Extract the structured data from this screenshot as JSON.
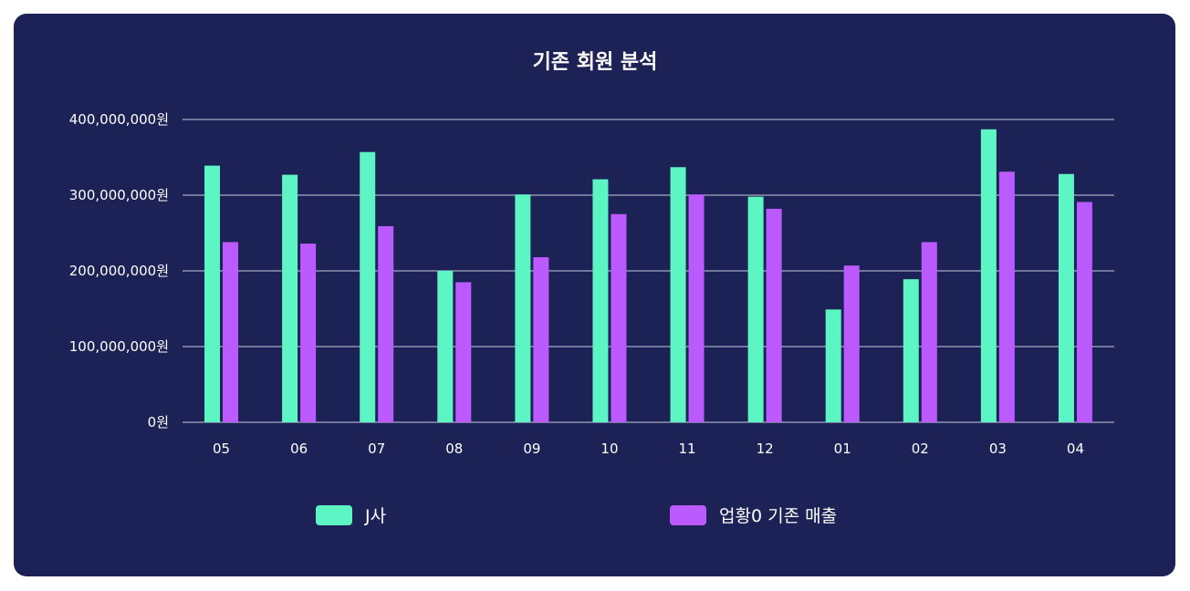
{
  "chart_data": {
    "type": "bar",
    "title": "기존 회원 분석",
    "categories": [
      "05",
      "06",
      "07",
      "08",
      "09",
      "10",
      "11",
      "12",
      "01",
      "02",
      "03",
      "04"
    ],
    "series": [
      {
        "name": "J사",
        "color": "#5cf5c3",
        "values": [
          339000000,
          327000000,
          357000000,
          200000000,
          301000000,
          321000000,
          337000000,
          298000000,
          149000000,
          189000000,
          387000000,
          328000000
        ]
      },
      {
        "name": "업황0 기존 매출",
        "color": "#bb5bff",
        "values": [
          238000000,
          236000000,
          259000000,
          185000000,
          218000000,
          275000000,
          301000000,
          282000000,
          207000000,
          238000000,
          331000000,
          291000000
        ]
      }
    ],
    "yticks": [
      "0원",
      "100,000,000원",
      "200,000,000원",
      "300,000,000원",
      "400,000,000원"
    ],
    "ylim": [
      0,
      400000000
    ],
    "grid": true,
    "legend": "bottom"
  }
}
